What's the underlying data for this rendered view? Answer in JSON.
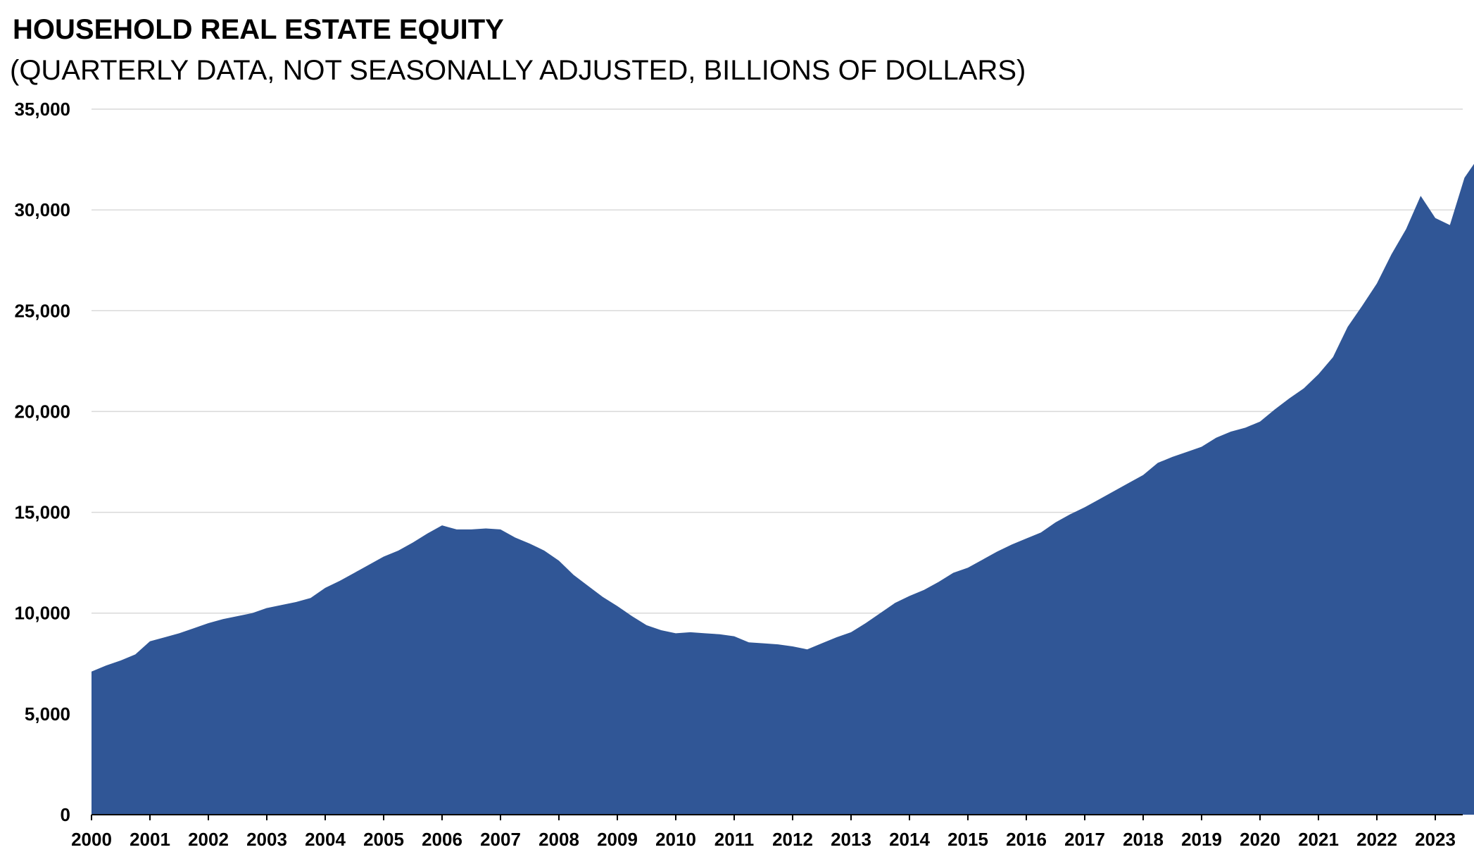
{
  "chart_data": {
    "type": "area",
    "title": "HOUSEHOLD REAL ESTATE EQUITY",
    "subtitle": "(QUARTERLY DATA, NOT SEASONALLY ADJUSTED, BILLIONS OF DOLLARS)",
    "xlabel": "",
    "ylabel": "",
    "ylim": [
      0,
      35000
    ],
    "yticks": [
      "0",
      "5,000",
      "10,000",
      "15,000",
      "20,000",
      "25,000",
      "30,000",
      "35,000"
    ],
    "ytick_values": [
      0,
      5000,
      10000,
      15000,
      20000,
      25000,
      30000,
      35000
    ],
    "xticks": [
      "2000",
      "2001",
      "2002",
      "2003",
      "2004",
      "2005",
      "2006",
      "2007",
      "2008",
      "2009",
      "2010",
      "2011",
      "2012",
      "2013",
      "2014",
      "2015",
      "2016",
      "2017",
      "2018",
      "2019",
      "2020",
      "2021",
      "2022",
      "2023"
    ],
    "grid": true,
    "fill_color": "#305696",
    "series": [
      {
        "name": "Household Real Estate Equity",
        "start": "2000 Q1",
        "frequency": "quarterly",
        "values": [
          7100,
          7400,
          7650,
          7950,
          8600,
          8800,
          9000,
          9250,
          9500,
          9700,
          9850,
          10000,
          10250,
          10400,
          10550,
          10750,
          11250,
          11600,
          12000,
          12400,
          12800,
          13100,
          13500,
          13950,
          14350,
          14150,
          14150,
          14200,
          14150,
          13750,
          13450,
          13100,
          12600,
          11900,
          11350,
          10800,
          10350,
          9850,
          9400,
          9150,
          9000,
          9050,
          9000,
          8950,
          8850,
          8550,
          8500,
          8450,
          8350,
          8200,
          8500,
          8800,
          9050,
          9500,
          10000,
          10500,
          10850,
          11150,
          11550,
          12000,
          12250,
          12650,
          13050,
          13400,
          13700,
          14000,
          14500,
          14900,
          15250,
          15650,
          16050,
          16450,
          16850,
          17450,
          17750,
          18000,
          18250,
          18700,
          19000,
          19200,
          19500,
          20100,
          20650,
          21150,
          21850,
          22700,
          24200,
          25250,
          26350,
          27800,
          29050,
          30700,
          29600,
          29250,
          31600,
          32650
        ]
      }
    ]
  }
}
